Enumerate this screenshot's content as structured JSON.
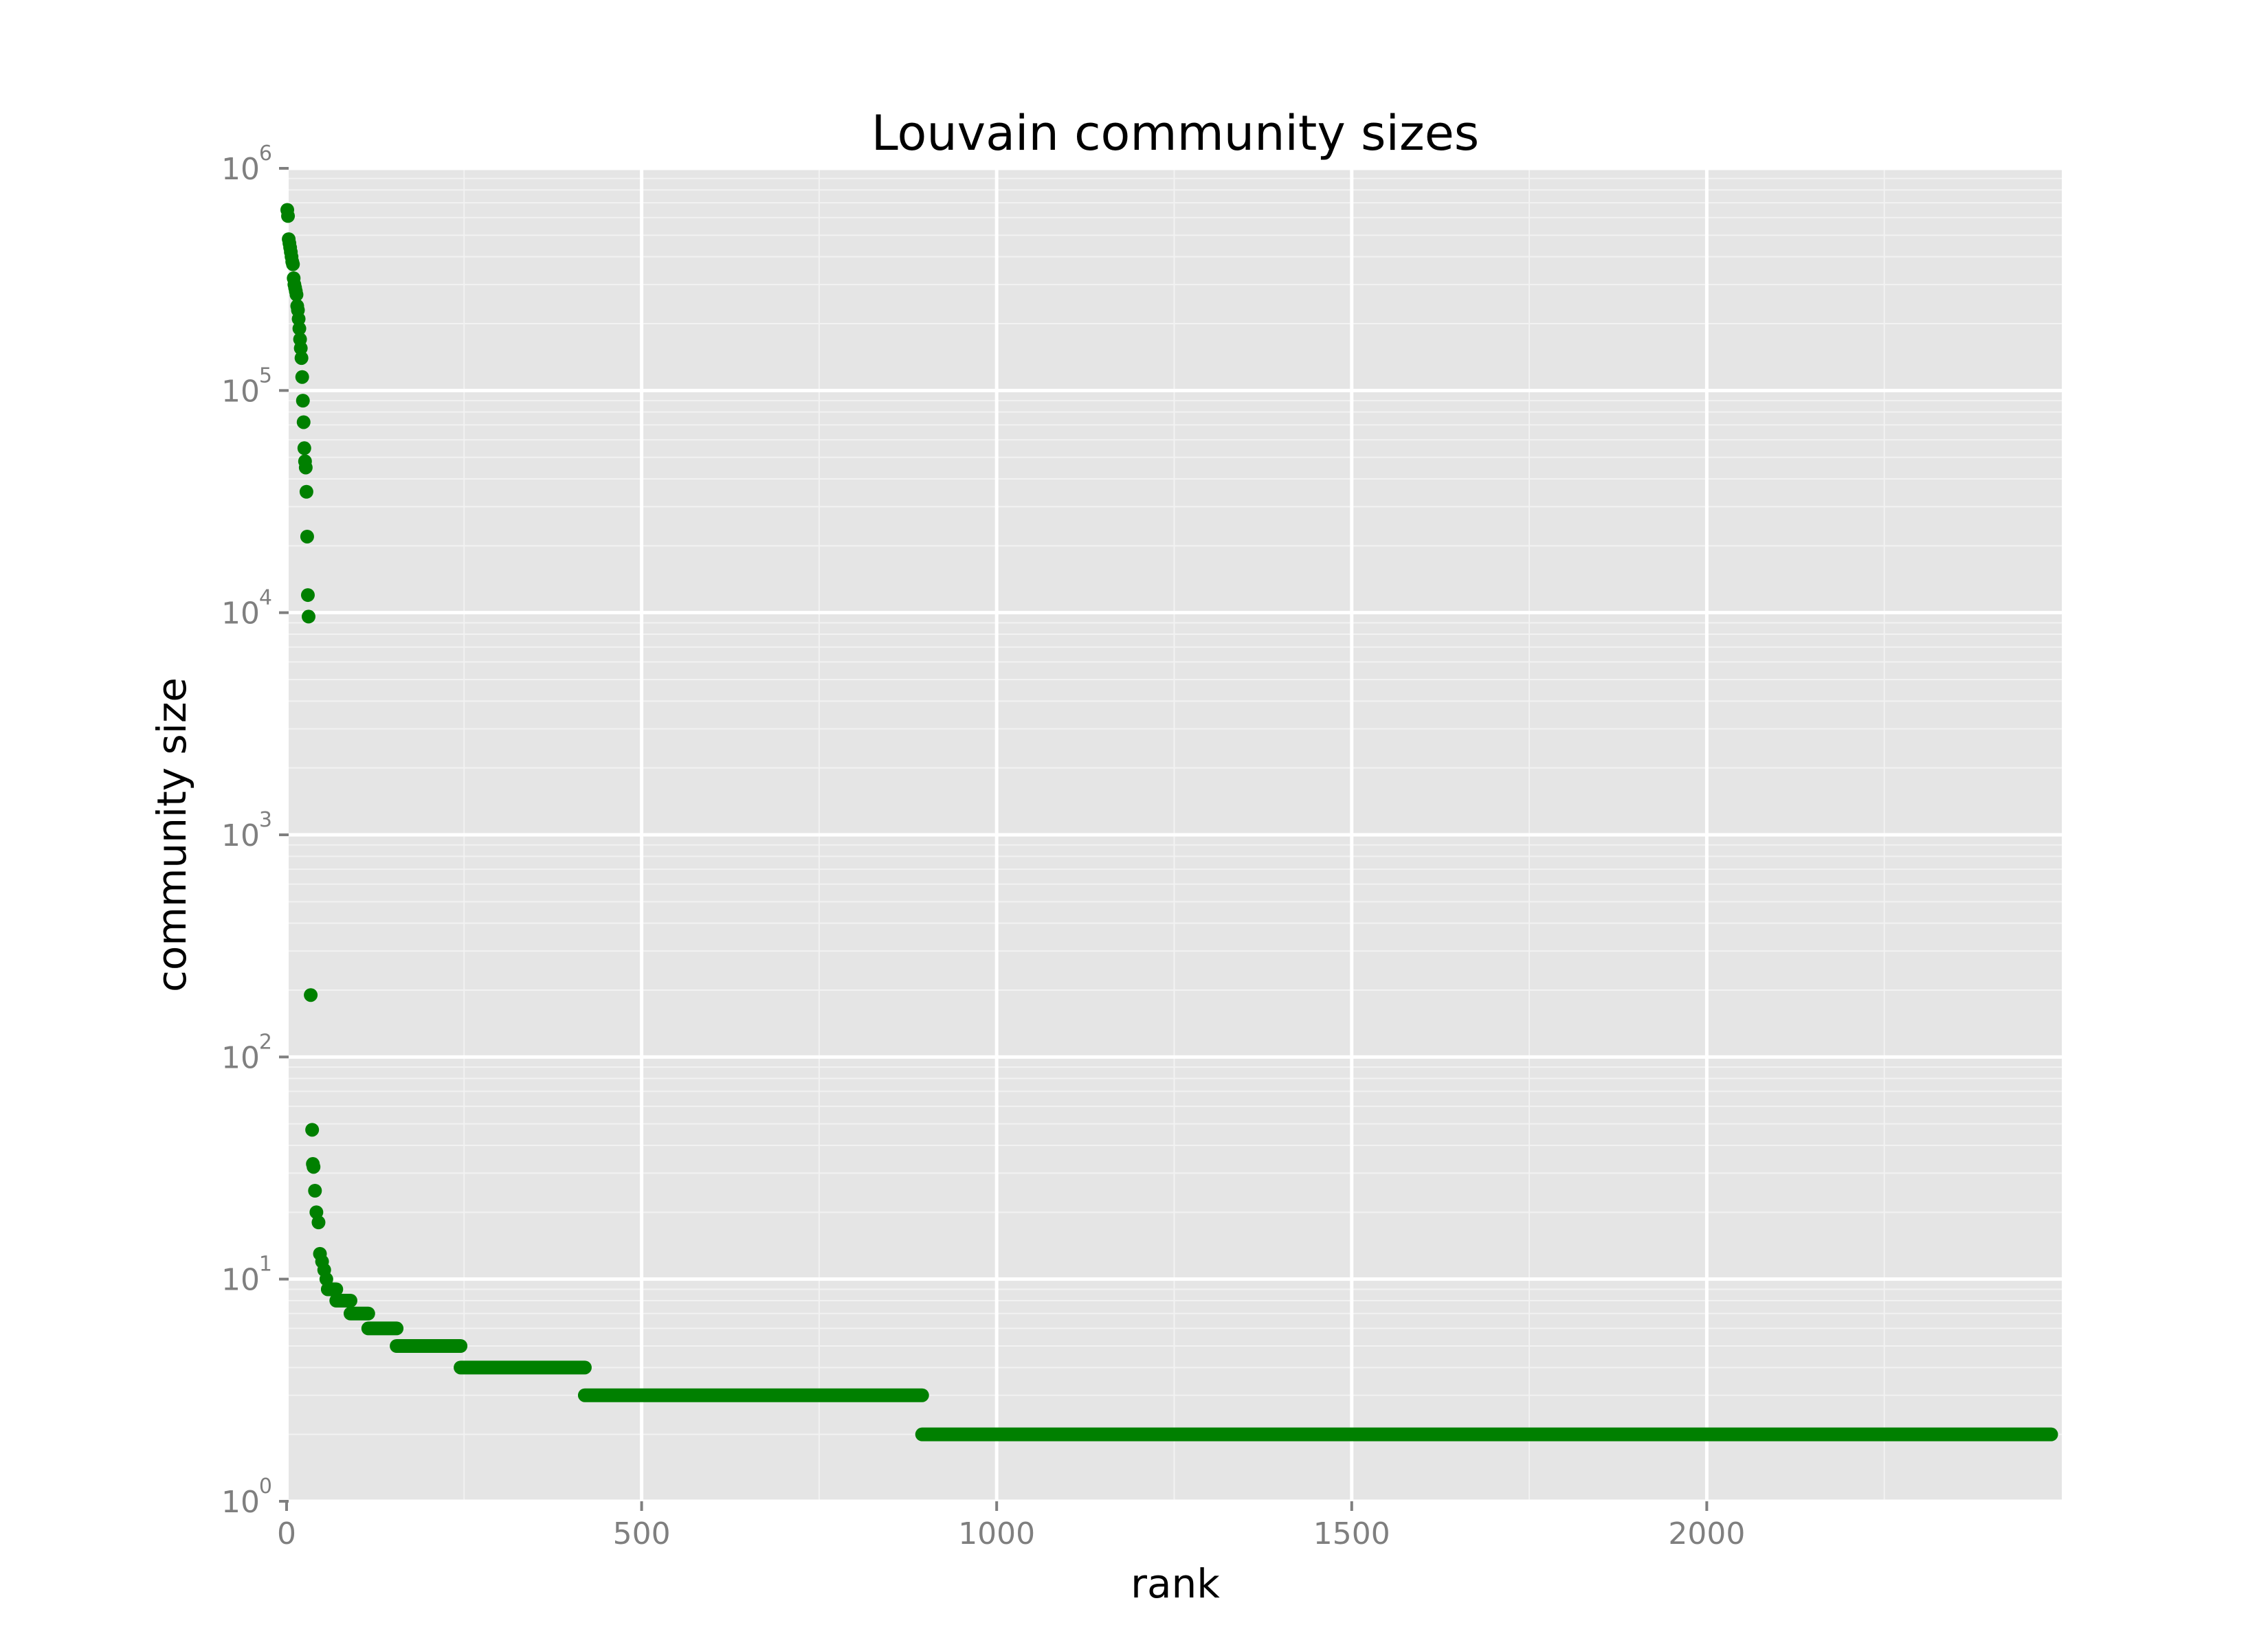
{
  "chart_data": {
    "type": "scatter",
    "title": "Louvain community sizes",
    "xlabel": "rank",
    "ylabel": "community size",
    "xlim": [
      0,
      2500
    ],
    "ylim": [
      1,
      1000000
    ],
    "y_scale": "log10",
    "grid": true,
    "x_ticks": [
      {
        "value": 0,
        "label": "0"
      },
      {
        "value": 500,
        "label": "500"
      },
      {
        "value": 1000,
        "label": "1000"
      },
      {
        "value": 1500,
        "label": "1500"
      },
      {
        "value": 2000,
        "label": "2000"
      }
    ],
    "y_ticks": [
      {
        "value": 1,
        "base": "10",
        "exp": "0"
      },
      {
        "value": 10,
        "base": "10",
        "exp": "1"
      },
      {
        "value": 100,
        "base": "10",
        "exp": "2"
      },
      {
        "value": 1000,
        "base": "10",
        "exp": "3"
      },
      {
        "value": 10000,
        "base": "10",
        "exp": "4"
      },
      {
        "value": 100000,
        "base": "10",
        "exp": "5"
      },
      {
        "value": 1000000,
        "base": "10",
        "exp": "6"
      }
    ],
    "point_color": "#008000",
    "points": [
      {
        "x": 1,
        "y": 650000
      },
      {
        "x": 2,
        "y": 610000
      },
      {
        "x": 3,
        "y": 480000
      },
      {
        "x": 4,
        "y": 460000
      },
      {
        "x": 5,
        "y": 440000
      },
      {
        "x": 6,
        "y": 420000
      },
      {
        "x": 7,
        "y": 400000
      },
      {
        "x": 8,
        "y": 380000
      },
      {
        "x": 9,
        "y": 370000
      },
      {
        "x": 10,
        "y": 320000
      },
      {
        "x": 11,
        "y": 300000
      },
      {
        "x": 12,
        "y": 290000
      },
      {
        "x": 13,
        "y": 280000
      },
      {
        "x": 14,
        "y": 270000
      },
      {
        "x": 15,
        "y": 240000
      },
      {
        "x": 16,
        "y": 230000
      },
      {
        "x": 17,
        "y": 210000
      },
      {
        "x": 18,
        "y": 190000
      },
      {
        "x": 19,
        "y": 170000
      },
      {
        "x": 20,
        "y": 155000
      },
      {
        "x": 21,
        "y": 140000
      },
      {
        "x": 22,
        "y": 115000
      },
      {
        "x": 23,
        "y": 90000
      },
      {
        "x": 24,
        "y": 72000
      },
      {
        "x": 25,
        "y": 55000
      },
      {
        "x": 26,
        "y": 48000
      },
      {
        "x": 27,
        "y": 45000
      },
      {
        "x": 28,
        "y": 35000
      },
      {
        "x": 29,
        "y": 22000
      },
      {
        "x": 30,
        "y": 12000
      },
      {
        "x": 31,
        "y": 9600
      },
      {
        "x": 34,
        "y": 190
      },
      {
        "x": 36,
        "y": 47
      },
      {
        "x": 37,
        "y": 33
      },
      {
        "x": 38,
        "y": 32
      },
      {
        "x": 40,
        "y": 25
      },
      {
        "x": 42,
        "y": 20
      },
      {
        "x": 45,
        "y": 18
      },
      {
        "x": 47,
        "y": 13
      },
      {
        "x": 50,
        "y": 12
      },
      {
        "x": 53,
        "y": 11
      },
      {
        "x": 56,
        "y": 10
      }
    ],
    "runs": [
      {
        "x_start": 58,
        "x_end": 70,
        "y": 9
      },
      {
        "x_start": 70,
        "x_end": 90,
        "y": 8
      },
      {
        "x_start": 90,
        "x_end": 115,
        "y": 7
      },
      {
        "x_start": 115,
        "x_end": 155,
        "y": 6
      },
      {
        "x_start": 155,
        "x_end": 245,
        "y": 5
      },
      {
        "x_start": 245,
        "x_end": 420,
        "y": 4
      },
      {
        "x_start": 420,
        "x_end": 895,
        "y": 3
      },
      {
        "x_start": 895,
        "x_end": 2485,
        "y": 2
      }
    ]
  }
}
